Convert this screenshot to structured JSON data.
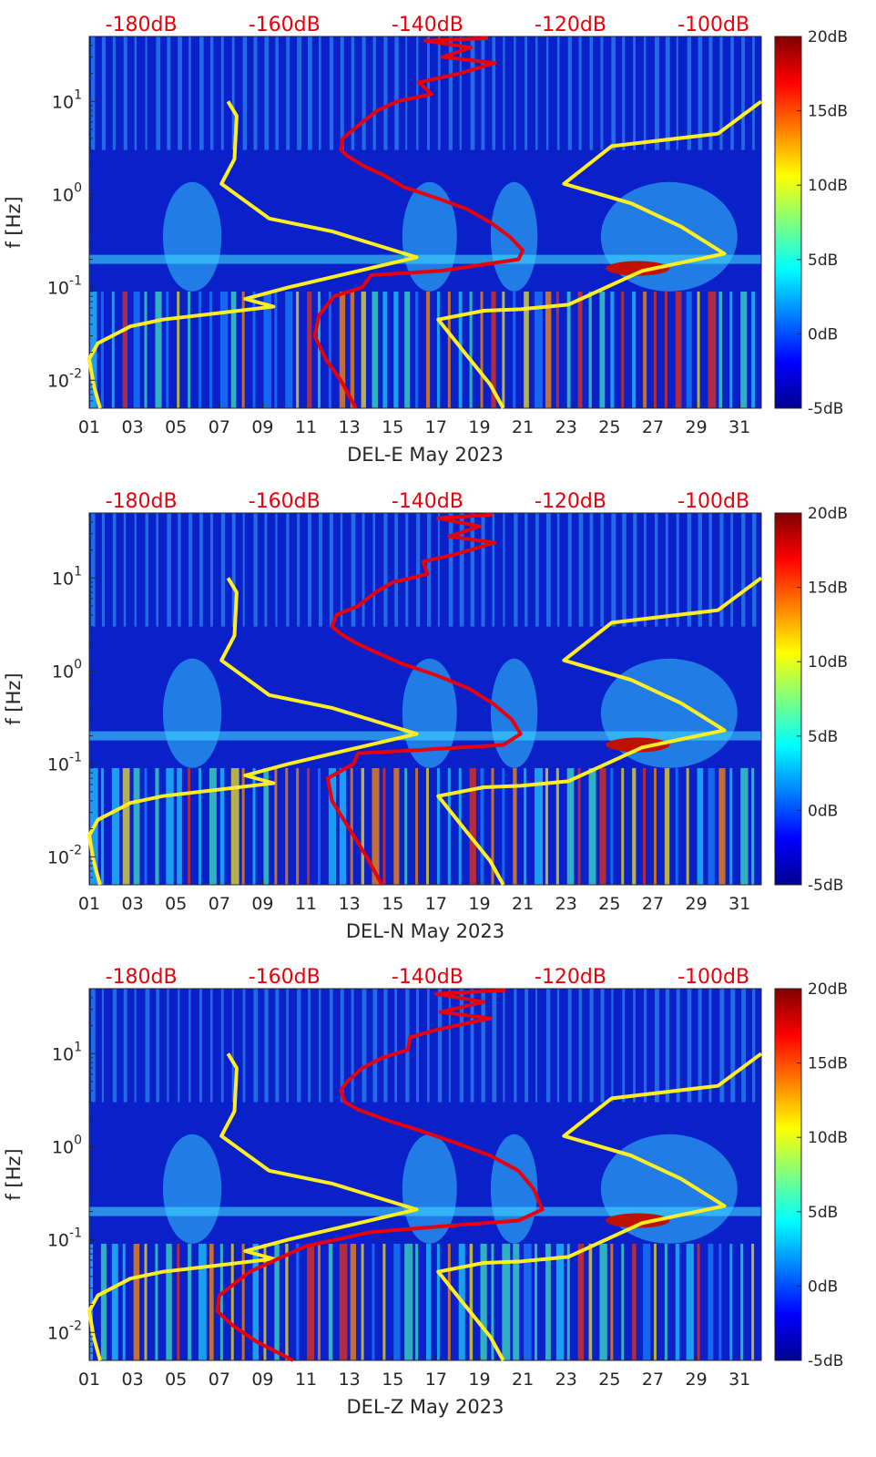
{
  "chart_data": [
    {
      "type": "heatmap",
      "xlabel": "DEL-E May 2023",
      "ylabel": "f [Hz]",
      "x_ticks": [
        "01",
        "03",
        "05",
        "07",
        "09",
        "11",
        "13",
        "15",
        "17",
        "19",
        "21",
        "23",
        "25",
        "27",
        "29",
        "31"
      ],
      "xlim": [
        1,
        32
      ],
      "y_scale": "log",
      "ylim": [
        0.005,
        50
      ],
      "y_ticks": [
        {
          "value": 0.01,
          "base": "10",
          "exp": "-2"
        },
        {
          "value": 0.1,
          "base": "10",
          "exp": "-1"
        },
        {
          "value": 1,
          "base": "10",
          "exp": "0"
        },
        {
          "value": 10,
          "base": "10",
          "exp": "1"
        }
      ],
      "top_labels": [
        "-180dB",
        "-160dB",
        "-140dB",
        "-120dB",
        "-100dB"
      ],
      "top_label_days": [
        3.4,
        10.0,
        16.6,
        23.2,
        29.8
      ],
      "colorbar": {
        "labels": [
          "20dB",
          "15dB",
          "10dB",
          "5dB",
          "0dB",
          "-5dB"
        ],
        "range": [
          -5,
          20
        ]
      },
      "series": [
        {
          "name": "noise model (yellow, low)",
          "color": "#ffee22",
          "points": [
            [
              7.4,
              10
            ],
            [
              7.8,
              7
            ],
            [
              7.7,
              2.4
            ],
            [
              7.1,
              1.3
            ],
            [
              9.3,
              0.55
            ],
            [
              12.2,
              0.4
            ],
            [
              16.1,
              0.21
            ],
            [
              10.2,
              0.1
            ],
            [
              8.2,
              0.075
            ],
            [
              9.5,
              0.062
            ],
            [
              7.6,
              0.055
            ],
            [
              4.4,
              0.045
            ],
            [
              2.9,
              0.038
            ],
            [
              1.4,
              0.025
            ],
            [
              1.0,
              0.017
            ],
            [
              1.2,
              0.009
            ],
            [
              1.5,
              0.005
            ]
          ]
        },
        {
          "name": "noise model (yellow, high)",
          "color": "#ffee22",
          "points": [
            [
              32,
              10
            ],
            [
              30,
              4.5
            ],
            [
              25.1,
              3.3
            ],
            [
              22.9,
              1.3
            ],
            [
              26,
              0.8
            ],
            [
              28.3,
              0.45
            ],
            [
              30.3,
              0.23
            ],
            [
              26.5,
              0.15
            ],
            [
              23.1,
              0.065
            ],
            [
              20.9,
              0.058
            ],
            [
              19.2,
              0.056
            ],
            [
              17.1,
              0.045
            ],
            [
              18.3,
              0.02
            ],
            [
              19.5,
              0.009
            ],
            [
              20.1,
              0.005
            ]
          ]
        }
      ],
      "red_series": {
        "name": "signal (red)",
        "color": "#e8000b",
        "points": [
          [
            19.4,
            48
          ],
          [
            16.5,
            45
          ],
          [
            18.6,
            38
          ],
          [
            17.3,
            30
          ],
          [
            19.7,
            26
          ],
          [
            18.1,
            20
          ],
          [
            16.2,
            16
          ],
          [
            16.8,
            12
          ],
          [
            15.2,
            10
          ],
          [
            14.3,
            8
          ],
          [
            13.6,
            6
          ],
          [
            12.7,
            4
          ],
          [
            12.6,
            3
          ],
          [
            12.9,
            2.6
          ],
          [
            13.7,
            2
          ],
          [
            14.6,
            1.6
          ],
          [
            15.5,
            1.2
          ],
          [
            17.1,
            0.9
          ],
          [
            18.4,
            0.7
          ],
          [
            19.5,
            0.5
          ],
          [
            20.4,
            0.35
          ],
          [
            21.0,
            0.25
          ],
          [
            20.8,
            0.2
          ],
          [
            17.2,
            0.15
          ],
          [
            14.0,
            0.135
          ],
          [
            13.6,
            0.1
          ],
          [
            12.3,
            0.08
          ],
          [
            11.6,
            0.05
          ],
          [
            11.4,
            0.03
          ],
          [
            11.9,
            0.017
          ],
          [
            12.6,
            0.01
          ],
          [
            13.3,
            0.005
          ]
        ]
      }
    },
    {
      "type": "heatmap",
      "xlabel": "DEL-N May 2023",
      "ylabel": "f [Hz]",
      "x_ticks": [
        "01",
        "03",
        "05",
        "07",
        "09",
        "11",
        "13",
        "15",
        "17",
        "19",
        "21",
        "23",
        "25",
        "27",
        "29",
        "31"
      ],
      "xlim": [
        1,
        32
      ],
      "y_scale": "log",
      "ylim": [
        0.005,
        50
      ],
      "y_ticks": [
        {
          "value": 0.01,
          "base": "10",
          "exp": "-2"
        },
        {
          "value": 0.1,
          "base": "10",
          "exp": "-1"
        },
        {
          "value": 1,
          "base": "10",
          "exp": "0"
        },
        {
          "value": 10,
          "base": "10",
          "exp": "1"
        }
      ],
      "top_labels": [
        "-180dB",
        "-160dB",
        "-140dB",
        "-120dB",
        "-100dB"
      ],
      "top_label_days": [
        3.4,
        10.0,
        16.6,
        23.2,
        29.8
      ],
      "colorbar": {
        "labels": [
          "20dB",
          "15dB",
          "10dB",
          "5dB",
          "0dB",
          "-5dB"
        ],
        "range": [
          -5,
          20
        ]
      },
      "series": [
        {
          "name": "noise model (yellow, low)",
          "color": "#ffee22",
          "points": [
            [
              7.4,
              10
            ],
            [
              7.8,
              7
            ],
            [
              7.7,
              2.4
            ],
            [
              7.1,
              1.3
            ],
            [
              9.3,
              0.55
            ],
            [
              12.2,
              0.4
            ],
            [
              16.1,
              0.21
            ],
            [
              10.2,
              0.1
            ],
            [
              8.2,
              0.075
            ],
            [
              9.5,
              0.062
            ],
            [
              7.6,
              0.055
            ],
            [
              4.4,
              0.045
            ],
            [
              2.9,
              0.038
            ],
            [
              1.4,
              0.025
            ],
            [
              1.0,
              0.017
            ],
            [
              1.2,
              0.009
            ],
            [
              1.5,
              0.005
            ]
          ]
        },
        {
          "name": "noise model (yellow, high)",
          "color": "#ffee22",
          "points": [
            [
              32,
              10
            ],
            [
              30,
              4.5
            ],
            [
              25.1,
              3.3
            ],
            [
              22.9,
              1.3
            ],
            [
              26,
              0.8
            ],
            [
              28.3,
              0.45
            ],
            [
              30.3,
              0.23
            ],
            [
              26.5,
              0.15
            ],
            [
              23.1,
              0.065
            ],
            [
              20.9,
              0.058
            ],
            [
              19.2,
              0.056
            ],
            [
              17.1,
              0.045
            ],
            [
              18.3,
              0.02
            ],
            [
              19.5,
              0.009
            ],
            [
              20.1,
              0.005
            ]
          ]
        }
      ],
      "red_series": {
        "name": "signal (red)",
        "color": "#e8000b",
        "points": [
          [
            19.6,
            48
          ],
          [
            17.1,
            44
          ],
          [
            19.0,
            36
          ],
          [
            17.6,
            28
          ],
          [
            19.7,
            24
          ],
          [
            17.9,
            18
          ],
          [
            16.4,
            15
          ],
          [
            16.6,
            11
          ],
          [
            15.0,
            9
          ],
          [
            14.2,
            7
          ],
          [
            13.4,
            5
          ],
          [
            12.4,
            4
          ],
          [
            12.2,
            3
          ],
          [
            12.6,
            2.5
          ],
          [
            13.3,
            2
          ],
          [
            14.2,
            1.6
          ],
          [
            15.4,
            1.2
          ],
          [
            17.0,
            0.9
          ],
          [
            18.5,
            0.65
          ],
          [
            19.6,
            0.45
          ],
          [
            20.5,
            0.3
          ],
          [
            20.9,
            0.21
          ],
          [
            20.1,
            0.16
          ],
          [
            16.0,
            0.14
          ],
          [
            13.4,
            0.13
          ],
          [
            13.2,
            0.1
          ],
          [
            12.0,
            0.07
          ],
          [
            12.2,
            0.04
          ],
          [
            13.0,
            0.02
          ],
          [
            13.8,
            0.01
          ],
          [
            14.5,
            0.005
          ]
        ]
      }
    },
    {
      "type": "heatmap",
      "xlabel": "DEL-Z May 2023",
      "ylabel": "f [Hz]",
      "x_ticks": [
        "01",
        "03",
        "05",
        "07",
        "09",
        "11",
        "13",
        "15",
        "17",
        "19",
        "21",
        "23",
        "25",
        "27",
        "29",
        "31"
      ],
      "xlim": [
        1,
        32
      ],
      "y_scale": "log",
      "ylim": [
        0.005,
        50
      ],
      "y_ticks": [
        {
          "value": 0.01,
          "base": "10",
          "exp": "-2"
        },
        {
          "value": 0.1,
          "base": "10",
          "exp": "-1"
        },
        {
          "value": 1,
          "base": "10",
          "exp": "0"
        },
        {
          "value": 10,
          "base": "10",
          "exp": "1"
        }
      ],
      "top_labels": [
        "-180dB",
        "-160dB",
        "-140dB",
        "-120dB",
        "-100dB"
      ],
      "top_label_days": [
        3.4,
        10.0,
        16.6,
        23.2,
        29.8
      ],
      "colorbar": {
        "labels": [
          "20dB",
          "15dB",
          "10dB",
          "5dB",
          "0dB",
          "-5dB"
        ],
        "range": [
          -5,
          20
        ]
      },
      "series": [
        {
          "name": "noise model (yellow, low)",
          "color": "#ffee22",
          "points": [
            [
              7.4,
              10
            ],
            [
              7.8,
              7
            ],
            [
              7.7,
              2.4
            ],
            [
              7.1,
              1.3
            ],
            [
              9.3,
              0.55
            ],
            [
              12.2,
              0.4
            ],
            [
              16.1,
              0.21
            ],
            [
              10.2,
              0.1
            ],
            [
              8.2,
              0.075
            ],
            [
              9.5,
              0.062
            ],
            [
              7.6,
              0.055
            ],
            [
              4.4,
              0.045
            ],
            [
              2.9,
              0.038
            ],
            [
              1.4,
              0.025
            ],
            [
              1.0,
              0.017
            ],
            [
              1.2,
              0.009
            ],
            [
              1.5,
              0.005
            ]
          ]
        },
        {
          "name": "noise model (yellow, high)",
          "color": "#ffee22",
          "points": [
            [
              32,
              10
            ],
            [
              30,
              4.5
            ],
            [
              25.1,
              3.3
            ],
            [
              22.9,
              1.3
            ],
            [
              26,
              0.8
            ],
            [
              28.3,
              0.45
            ],
            [
              30.3,
              0.23
            ],
            [
              26.5,
              0.15
            ],
            [
              23.1,
              0.065
            ],
            [
              20.9,
              0.058
            ],
            [
              19.2,
              0.056
            ],
            [
              17.1,
              0.045
            ],
            [
              18.3,
              0.02
            ],
            [
              19.5,
              0.009
            ],
            [
              20.1,
              0.005
            ]
          ]
        }
      ],
      "red_series": {
        "name": "signal (red)",
        "color": "#e8000b",
        "points": [
          [
            20.2,
            48
          ],
          [
            17.0,
            44
          ],
          [
            19.2,
            36
          ],
          [
            17.2,
            28
          ],
          [
            19.5,
            24
          ],
          [
            17.0,
            18
          ],
          [
            15.8,
            15
          ],
          [
            15.7,
            11
          ],
          [
            14.5,
            9
          ],
          [
            13.6,
            7
          ],
          [
            12.9,
            5
          ],
          [
            12.6,
            4
          ],
          [
            12.8,
            3
          ],
          [
            13.4,
            2.5
          ],
          [
            14.8,
            1.9
          ],
          [
            16.2,
            1.5
          ],
          [
            17.9,
            1.1
          ],
          [
            19.5,
            0.8
          ],
          [
            20.8,
            0.55
          ],
          [
            21.5,
            0.35
          ],
          [
            21.9,
            0.21
          ],
          [
            20.8,
            0.16
          ],
          [
            17.5,
            0.14
          ],
          [
            14.0,
            0.12
          ],
          [
            11.0,
            0.085
          ],
          [
            8.4,
            0.045
          ],
          [
            7.0,
            0.025
          ],
          [
            6.9,
            0.017
          ],
          [
            7.6,
            0.012
          ],
          [
            8.7,
            0.008
          ],
          [
            10.4,
            0.005
          ]
        ]
      }
    }
  ]
}
